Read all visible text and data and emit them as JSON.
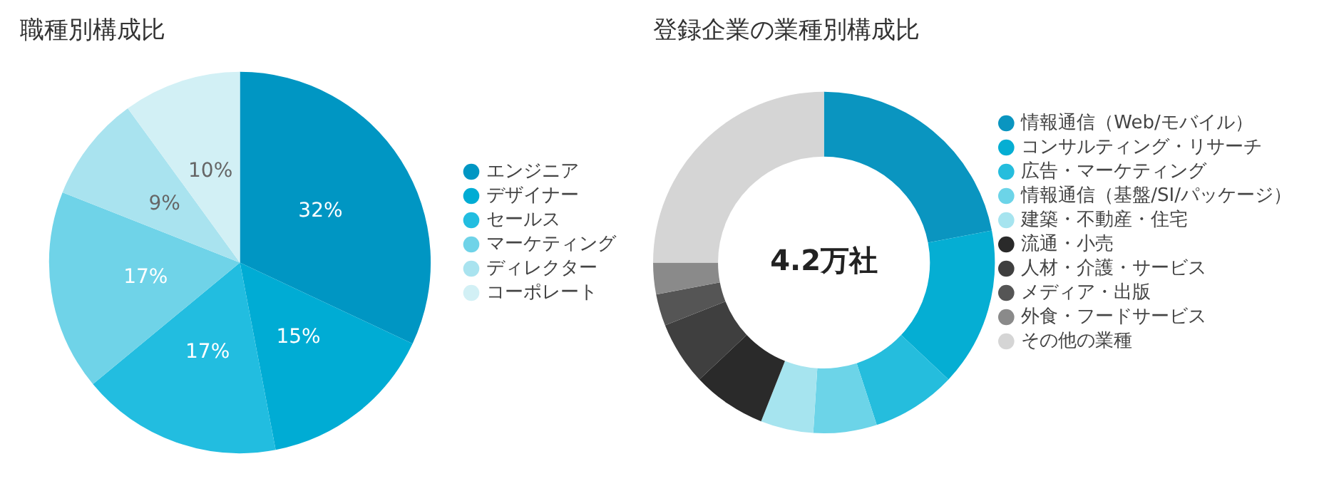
{
  "chart_data": [
    {
      "type": "pie",
      "title": "職種別構成比",
      "categories": [
        "エンジニア",
        "デザイナー",
        "セールス",
        "マーケティング",
        "ディレクター",
        "コーポレート"
      ],
      "values": [
        32,
        15,
        17,
        17,
        9,
        10
      ],
      "value_labels": [
        "32%",
        "15%",
        "17%",
        "17%",
        "9%",
        "10%"
      ],
      "colors": [
        "#0096c3",
        "#00acd4",
        "#22bde0",
        "#6fd3e8",
        "#a9e3ef",
        "#d2f0f5"
      ],
      "legend": "right"
    },
    {
      "type": "donut",
      "title": "登録企業の業種別構成比",
      "categories": [
        "情報通信（Web/モバイル）",
        "コンサルティング・リサーチ",
        "広告・マーケティング",
        "情報通信（基盤/SI/パッケージ）",
        "建築・不動産・住宅",
        "流通・小売",
        "人材・介護・サービス",
        "メディア・出版",
        "外食・フードサービス",
        "その他の業種"
      ],
      "values": [
        22,
        15,
        8,
        6,
        5,
        7,
        6,
        3,
        3,
        25
      ],
      "colors": [
        "#0a95c0",
        "#05aed3",
        "#25bddd",
        "#6cd4e8",
        "#a6e4ef",
        "#2a2a2a",
        "#3f3f3f",
        "#555555",
        "#8a8a8a",
        "#d5d5d5"
      ],
      "annotations": [
        "4.2万社"
      ],
      "legend": "right"
    }
  ]
}
